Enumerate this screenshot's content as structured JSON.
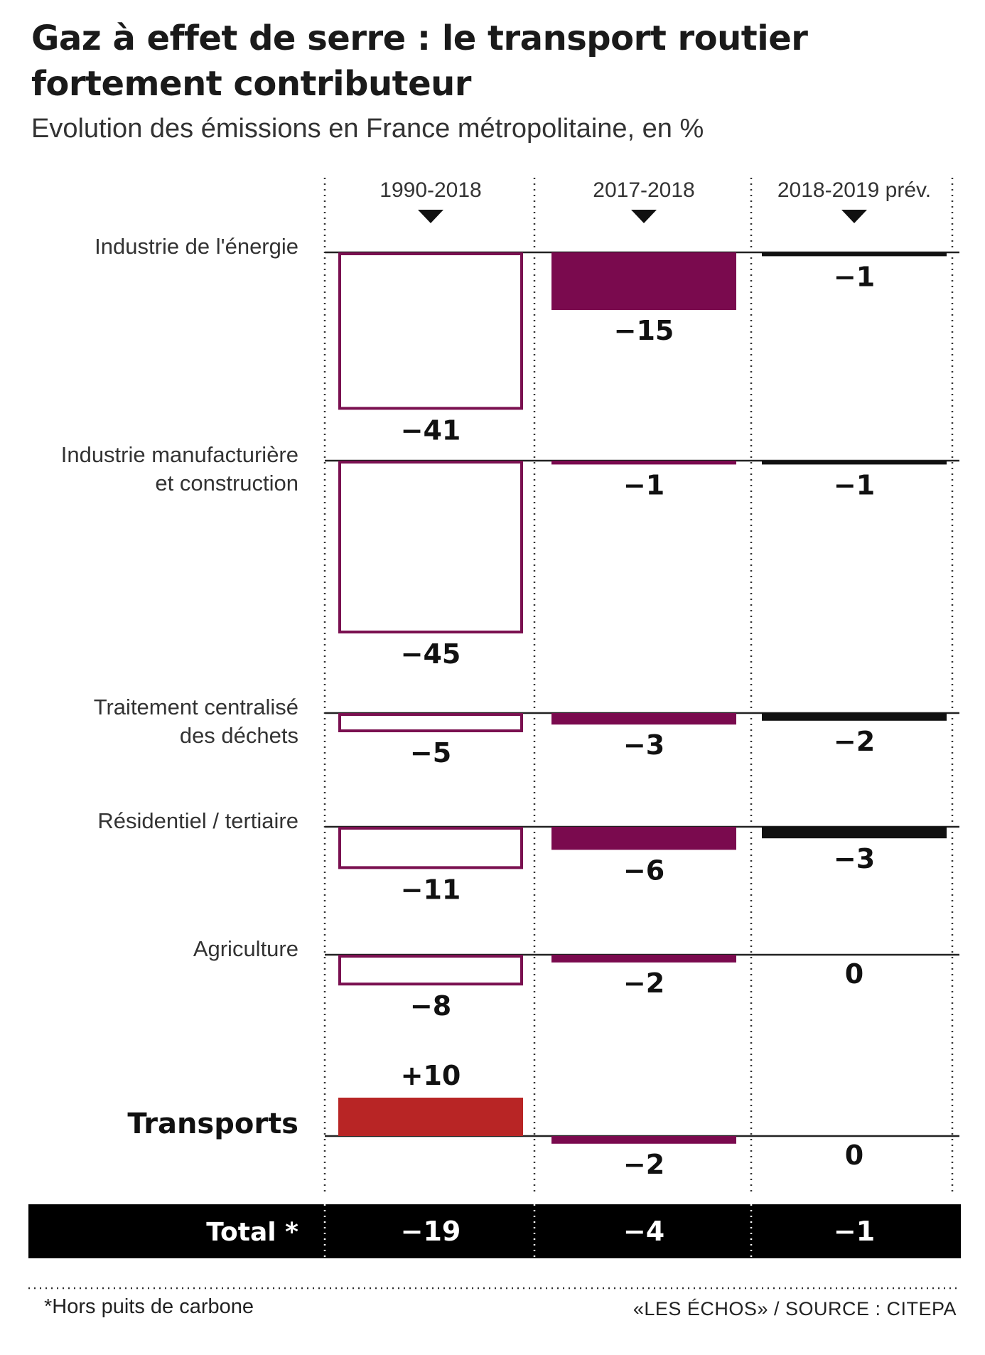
{
  "header": {
    "title": "Gaz à effet de serre : le transport routier fortement contributeur",
    "subtitle": "Evolution des émissions en France métropolitaine,  en %"
  },
  "chart_data": {
    "type": "bar",
    "columns": [
      "1990-2018",
      "2017-2018",
      "2018-2019 prév."
    ],
    "categories": [
      "Industrie de l'énergie",
      "Industrie manufacturière et construction",
      "Traitement centralisé des déchets",
      "Résidentiel / tertiaire",
      "Agriculture",
      "Transports"
    ],
    "category_lines": [
      [
        "Industrie de l'énergie"
      ],
      [
        "Industrie manufacturière",
        "et construction"
      ],
      [
        "Traitement centralisé",
        "des déchets"
      ],
      [
        "Résidentiel / tertiaire"
      ],
      [
        "Agriculture"
      ],
      [
        "Transports"
      ]
    ],
    "series": [
      {
        "name": "1990-2018",
        "values": [
          -41,
          -45,
          -5,
          -11,
          -8,
          10
        ],
        "labels": [
          "−41",
          "−45",
          "−5",
          "−11",
          "−8",
          "+10"
        ]
      },
      {
        "name": "2017-2018",
        "values": [
          -15,
          -1,
          -3,
          -6,
          -2,
          -2
        ],
        "labels": [
          "−15",
          "−1",
          "−3",
          "−6",
          "−2",
          "−2"
        ]
      },
      {
        "name": "2018-2019 prév.",
        "values": [
          -1,
          -1,
          -2,
          -3,
          0,
          0
        ],
        "labels": [
          "−1",
          "−1",
          "−2",
          "−3",
          "0",
          "0"
        ]
      }
    ],
    "total": {
      "label": "Total *",
      "values": [
        "−19",
        "−4",
        "−1"
      ]
    },
    "colors": {
      "outline": "#7a1050",
      "purple": "#7a0a4e",
      "black": "#111111",
      "red": "#b82525"
    }
  },
  "footer": {
    "footnote": "*Hors puits de carbone",
    "source": "«LES ÉCHOS» / SOURCE : CITEPA"
  }
}
